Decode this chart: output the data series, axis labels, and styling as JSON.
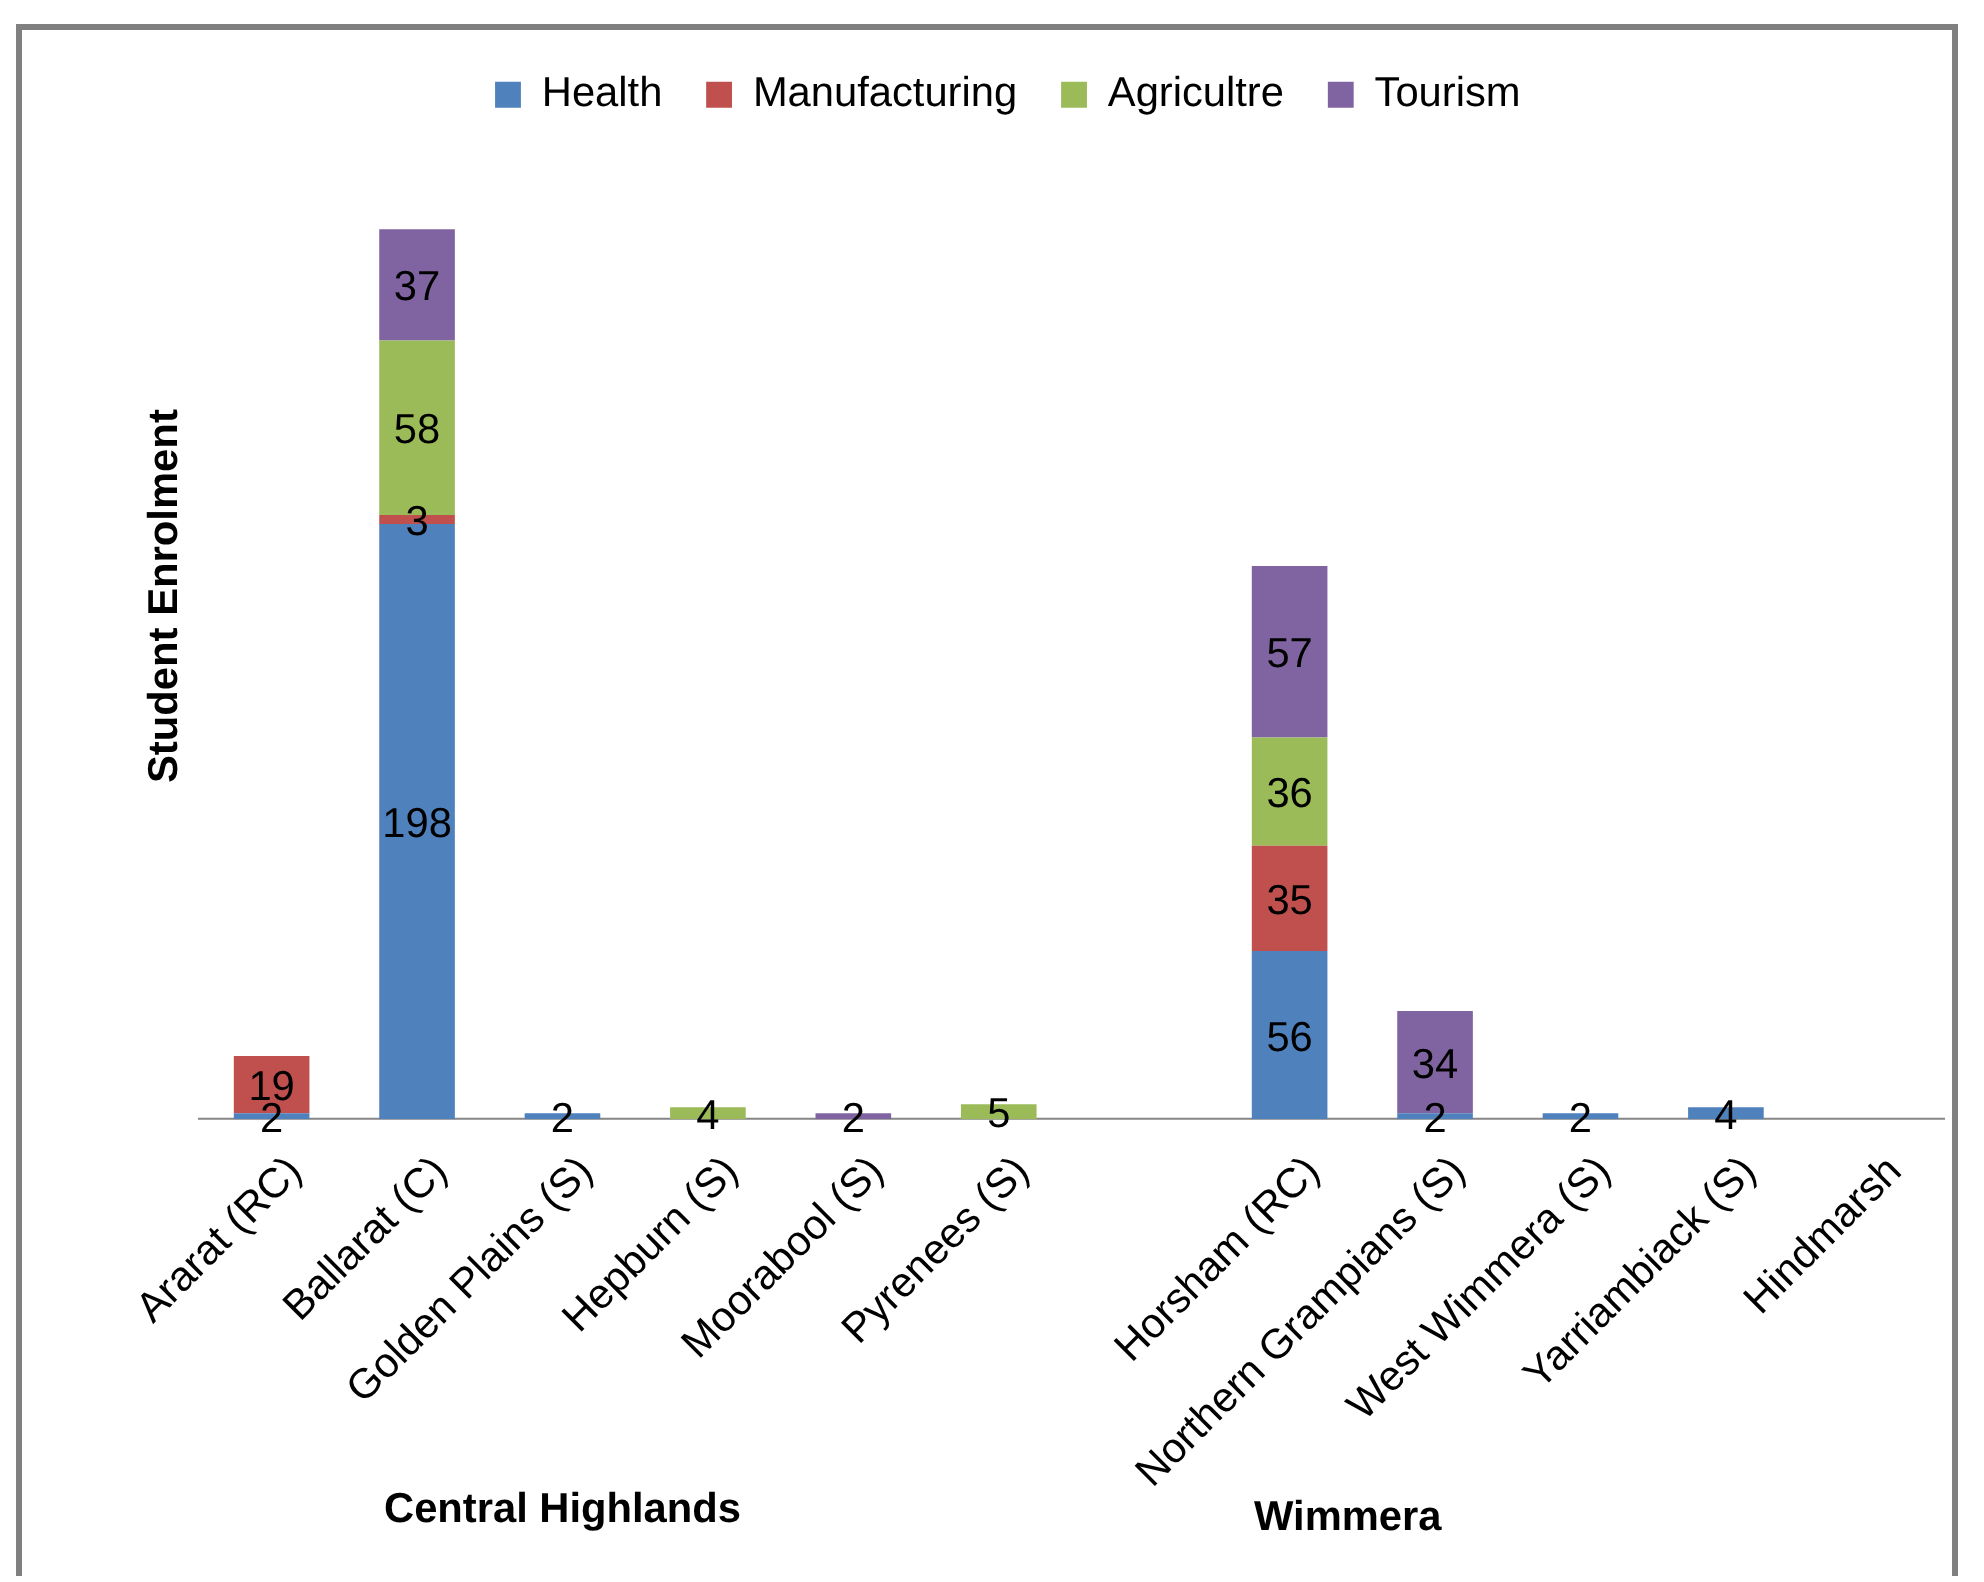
{
  "chart_data": {
    "type": "bar",
    "stacked": true,
    "legend": "top",
    "data_labels": true,
    "tick_labels": "x",
    "ylabel": "Student Enrolment",
    "categories": [
      "Ararat (RC)",
      "Ballarat (C)",
      "Golden Plains (S)",
      "Hepburn (S)",
      "Moorabool (S)",
      "Pyrenees (S)",
      null,
      "Horsham (RC)",
      "Northern Grampians (S)",
      "West Wimmera (S)",
      "Yarriambiack (S)",
      "Hindmarsh"
    ],
    "series": [
      {
        "name": "Health",
        "color": "#4f81bd",
        "values": [
          2,
          198,
          2,
          null,
          null,
          null,
          null,
          56,
          2,
          2,
          4,
          null
        ]
      },
      {
        "name": "Manufacturing",
        "color": "#c0504d",
        "values": [
          19,
          3,
          null,
          null,
          null,
          null,
          null,
          35,
          null,
          null,
          null,
          null
        ]
      },
      {
        "name": "Agricultre",
        "color": "#9bbb59",
        "values": [
          null,
          58,
          null,
          4,
          null,
          5,
          null,
          36,
          null,
          null,
          null,
          null
        ]
      },
      {
        "name": "Tourism",
        "color": "#8064a2",
        "values": [
          null,
          37,
          null,
          null,
          2,
          null,
          null,
          57,
          34,
          null,
          null,
          null
        ]
      }
    ],
    "annotations": [
      "Central Highlands",
      "Wimmera"
    ]
  }
}
